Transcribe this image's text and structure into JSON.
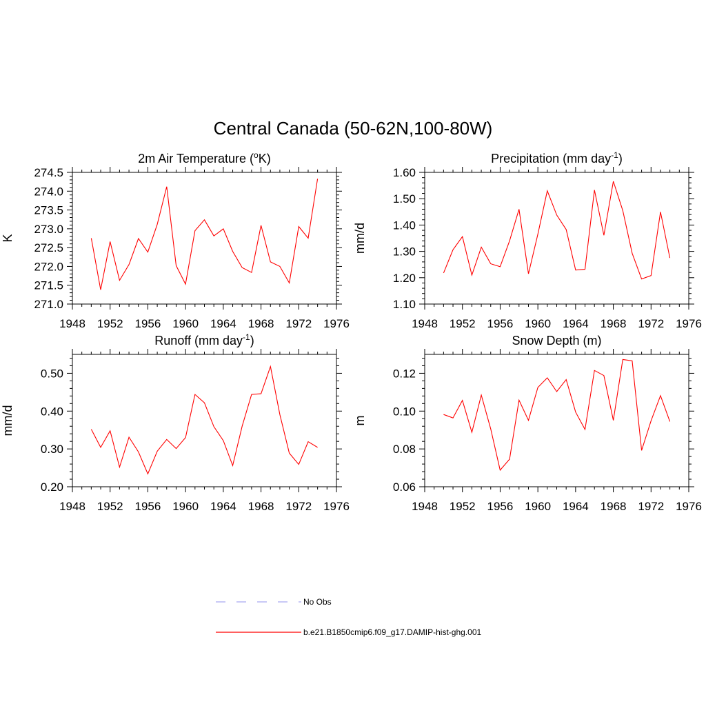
{
  "title": "Central Canada (50-62N,100-80W)",
  "chart_data": [
    {
      "type": "line",
      "title": "2m Air Temperature (",
      "title_sup": "o",
      "title_after": "K)",
      "ylabel": "K",
      "xlabel": "",
      "xlim": [
        1948,
        1976
      ],
      "xticks": [
        1948,
        1952,
        1956,
        1960,
        1964,
        1968,
        1972,
        1976
      ],
      "ylim": [
        271.0,
        274.5
      ],
      "yticks": [
        "271.0",
        "271.5",
        "272.0",
        "272.5",
        "273.0",
        "273.5",
        "274.0",
        "274.5"
      ],
      "x": [
        1950,
        1951,
        1952,
        1953,
        1954,
        1955,
        1956,
        1957,
        1958,
        1959,
        1960,
        1961,
        1962,
        1963,
        1964,
        1965,
        1966,
        1967,
        1968,
        1969,
        1970,
        1971,
        1972,
        1973,
        1974
      ],
      "series": [
        {
          "values": [
            272.75,
            271.38,
            272.66,
            271.63,
            272.05,
            272.74,
            272.38,
            273.12,
            274.12,
            272.02,
            271.53,
            272.95,
            273.24,
            272.81,
            273.0,
            272.4,
            271.97,
            271.84,
            273.09,
            272.12,
            272.0,
            271.56,
            273.06,
            272.75,
            274.33
          ]
        }
      ]
    },
    {
      "type": "line",
      "title": "Precipitation (mm day",
      "title_sup": "-1",
      "title_after": ")",
      "ylabel": "mm/d",
      "xlabel": "",
      "xlim": [
        1948,
        1976
      ],
      "xticks": [
        1948,
        1952,
        1956,
        1960,
        1964,
        1968,
        1972,
        1976
      ],
      "ylim": [
        1.1,
        1.6
      ],
      "yticks": [
        "1.10",
        "1.20",
        "1.30",
        "1.40",
        "1.50",
        "1.60"
      ],
      "x": [
        1950,
        1951,
        1952,
        1953,
        1954,
        1955,
        1956,
        1957,
        1958,
        1959,
        1960,
        1961,
        1962,
        1963,
        1964,
        1965,
        1966,
        1967,
        1968,
        1969,
        1970,
        1971,
        1972,
        1973,
        1974
      ],
      "series": [
        {
          "values": [
            1.218,
            1.306,
            1.356,
            1.21,
            1.316,
            1.253,
            1.242,
            1.34,
            1.46,
            1.215,
            1.365,
            1.53,
            1.438,
            1.383,
            1.229,
            1.232,
            1.533,
            1.361,
            1.566,
            1.455,
            1.293,
            1.195,
            1.208,
            1.45,
            1.275
          ]
        }
      ]
    },
    {
      "type": "line",
      "title": "Runoff (mm day",
      "title_sup": "-1",
      "title_after": ")",
      "ylabel": "mm/d",
      "xlabel": "",
      "xlim": [
        1948,
        1976
      ],
      "xticks": [
        1948,
        1952,
        1956,
        1960,
        1964,
        1968,
        1972,
        1976
      ],
      "ylim": [
        0.2,
        0.55
      ],
      "yticks": [
        "0.20",
        "0.30",
        "0.40",
        "0.50"
      ],
      "ytick_values": [
        0.2,
        0.3,
        0.4,
        0.5
      ],
      "x": [
        1950,
        1951,
        1952,
        1953,
        1954,
        1955,
        1956,
        1957,
        1958,
        1959,
        1960,
        1961,
        1962,
        1963,
        1964,
        1965,
        1966,
        1967,
        1968,
        1969,
        1970,
        1971,
        1972,
        1973,
        1974
      ],
      "series": [
        {
          "values": [
            0.352,
            0.304,
            0.348,
            0.252,
            0.331,
            0.292,
            0.234,
            0.294,
            0.325,
            0.301,
            0.33,
            0.444,
            0.422,
            0.359,
            0.322,
            0.256,
            0.36,
            0.444,
            0.446,
            0.518,
            0.391,
            0.289,
            0.259,
            0.319,
            0.304
          ]
        }
      ]
    },
    {
      "type": "line",
      "title": "Snow Depth (m)",
      "title_sup": "",
      "title_after": "",
      "ylabel": "m",
      "xlabel": "",
      "xlim": [
        1948,
        1976
      ],
      "xticks": [
        1948,
        1952,
        1956,
        1960,
        1964,
        1968,
        1972,
        1976
      ],
      "ylim": [
        0.06,
        0.13
      ],
      "yticks": [
        "0.06",
        "0.08",
        "0.10",
        "0.12"
      ],
      "ytick_values": [
        0.06,
        0.08,
        0.1,
        0.12
      ],
      "x": [
        1950,
        1951,
        1952,
        1953,
        1954,
        1955,
        1956,
        1957,
        1958,
        1959,
        1960,
        1961,
        1962,
        1963,
        1964,
        1965,
        1966,
        1967,
        1968,
        1969,
        1970,
        1971,
        1972,
        1973,
        1974
      ],
      "series": [
        {
          "values": [
            0.0982,
            0.0964,
            0.1057,
            0.0888,
            0.1085,
            0.0905,
            0.0688,
            0.0746,
            0.1058,
            0.0951,
            0.1125,
            0.1176,
            0.1103,
            0.1167,
            0.0995,
            0.0903,
            0.1215,
            0.1188,
            0.0951,
            0.1273,
            0.1266,
            0.0792,
            0.0949,
            0.1082,
            0.0945
          ]
        }
      ]
    }
  ],
  "legend": [
    {
      "label": "No Obs",
      "color": "#a8a8f0",
      "style": "dashed"
    },
    {
      "label": "b.e21.B1850cmip6.f09_g17.DAMIP-hist-ghg.001",
      "color": "#ff0000",
      "style": "solid"
    }
  ],
  "colors": {
    "series": "#ff0000"
  }
}
